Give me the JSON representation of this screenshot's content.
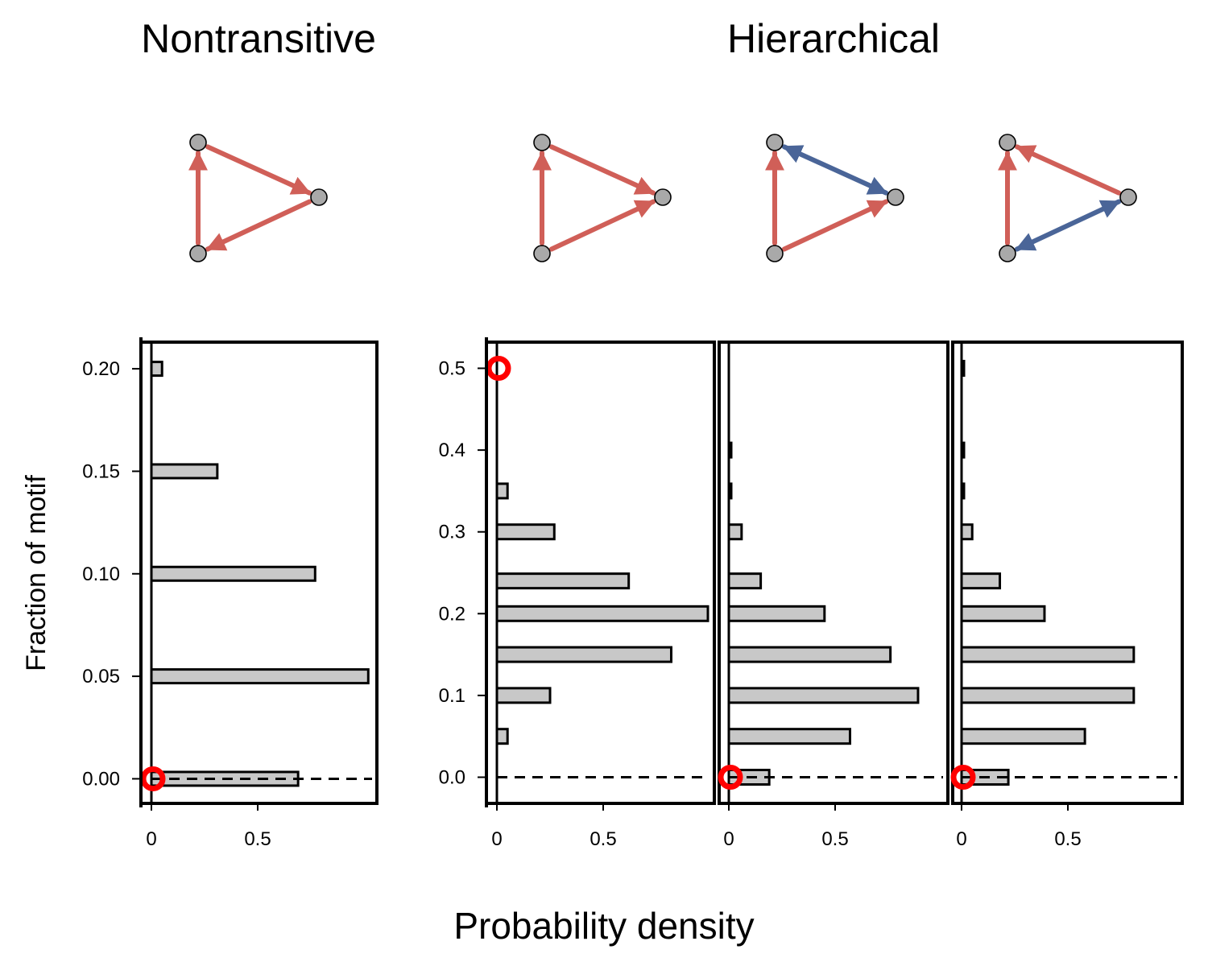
{
  "titles": {
    "left": "Nontransitive",
    "right": "Hierarchical"
  },
  "ylabel": "Fraction of motif",
  "xlabel": "Probability density",
  "colors": {
    "red_edge": "#d05f58",
    "blue_edge": "#4a6598",
    "node": "#a9a9a9",
    "bar": "#c8c8c8",
    "marker": "#ff0000"
  },
  "chart_data": [
    {
      "type": "bar",
      "orientation": "horizontal",
      "group": "Nontransitive",
      "motif": {
        "edges": [
          [
            "A",
            "C",
            "red"
          ],
          [
            "C",
            "B",
            "red"
          ],
          [
            "B",
            "A",
            "red"
          ]
        ]
      },
      "ylim": [
        -0.012,
        0.213
      ],
      "xlim": [
        -0.05,
        1.0
      ],
      "yticks": [
        0.0,
        0.05,
        0.1,
        0.15,
        0.2
      ],
      "ytick_labels": [
        "0.00",
        "0.05",
        "0.10",
        "0.15",
        "0.20"
      ],
      "xticks": [
        0,
        0.5
      ],
      "xtick_labels": [
        "0",
        "0.5"
      ],
      "bars": [
        {
          "y": 0.0,
          "value": 0.69
        },
        {
          "y": 0.05,
          "value": 1.02
        },
        {
          "y": 0.1,
          "value": 0.77
        },
        {
          "y": 0.15,
          "value": 0.31
        },
        {
          "y": 0.2,
          "value": 0.05
        }
      ],
      "marker": {
        "y": 0.0,
        "x": 0.0
      }
    },
    {
      "type": "bar",
      "orientation": "horizontal",
      "group": "Hierarchical",
      "motif": {
        "edges": [
          [
            "A",
            "C",
            "red"
          ],
          [
            "B",
            "C",
            "red"
          ],
          [
            "B",
            "A",
            "red"
          ]
        ]
      },
      "ylim": [
        -0.032,
        0.532
      ],
      "xlim": [
        -0.03,
        1.0
      ],
      "yticks": [
        0.0,
        0.1,
        0.2,
        0.3,
        0.4,
        0.5
      ],
      "ytick_labels": [
        "0.0",
        "0.1",
        "0.2",
        "0.3",
        "0.4",
        "0.5"
      ],
      "xticks": [
        0,
        0.5
      ],
      "xtick_labels": [
        "0",
        "0.5"
      ],
      "bars": [
        {
          "y": 0.05,
          "value": 0.05
        },
        {
          "y": 0.1,
          "value": 0.25
        },
        {
          "y": 0.15,
          "value": 0.82
        },
        {
          "y": 0.2,
          "value": 1.0
        },
        {
          "y": 0.24,
          "value": 0.62
        },
        {
          "y": 0.3,
          "value": 0.27
        },
        {
          "y": 0.35,
          "value": 0.05
        }
      ],
      "marker": {
        "y": 0.5,
        "x": 0.0
      }
    },
    {
      "type": "bar",
      "orientation": "horizontal",
      "group": "Hierarchical",
      "motif": {
        "edges": [
          [
            "A",
            "C",
            "blue_bi"
          ],
          [
            "B",
            "C",
            "red"
          ],
          [
            "B",
            "A",
            "red"
          ]
        ]
      },
      "ylim": [
        -0.032,
        0.532
      ],
      "xlim": [
        -0.03,
        1.0
      ],
      "xticks": [
        0,
        0.5
      ],
      "xtick_labels": [
        "0",
        "0.5"
      ],
      "bars": [
        {
          "y": 0.0,
          "value": 0.19
        },
        {
          "y": 0.05,
          "value": 0.57
        },
        {
          "y": 0.1,
          "value": 0.89
        },
        {
          "y": 0.15,
          "value": 0.76
        },
        {
          "y": 0.2,
          "value": 0.45
        },
        {
          "y": 0.24,
          "value": 0.15
        },
        {
          "y": 0.3,
          "value": 0.06
        },
        {
          "y": 0.35,
          "value": 0.01
        },
        {
          "y": 0.4,
          "value": 0.01
        }
      ],
      "marker": {
        "y": 0.0,
        "x": 0.0
      }
    },
    {
      "type": "bar",
      "orientation": "horizontal",
      "group": "Hierarchical",
      "motif": {
        "edges": [
          [
            "C",
            "A",
            "red"
          ],
          [
            "B",
            "A",
            "red"
          ],
          [
            "B",
            "C",
            "blue_bi"
          ]
        ]
      },
      "ylim": [
        -0.032,
        0.532
      ],
      "xlim": [
        -0.03,
        1.0
      ],
      "xticks": [
        0,
        0.5
      ],
      "xtick_labels": [
        "0",
        "0.5"
      ],
      "bars": [
        {
          "y": 0.0,
          "value": 0.22
        },
        {
          "y": 0.05,
          "value": 0.58
        },
        {
          "y": 0.1,
          "value": 0.81
        },
        {
          "y": 0.15,
          "value": 0.81
        },
        {
          "y": 0.2,
          "value": 0.39
        },
        {
          "y": 0.24,
          "value": 0.18
        },
        {
          "y": 0.3,
          "value": 0.05
        },
        {
          "y": 0.35,
          "value": 0.01
        },
        {
          "y": 0.4,
          "value": 0.005
        },
        {
          "y": 0.5,
          "value": 0.005
        }
      ],
      "marker": {
        "y": 0.0,
        "x": 0.0
      }
    }
  ]
}
